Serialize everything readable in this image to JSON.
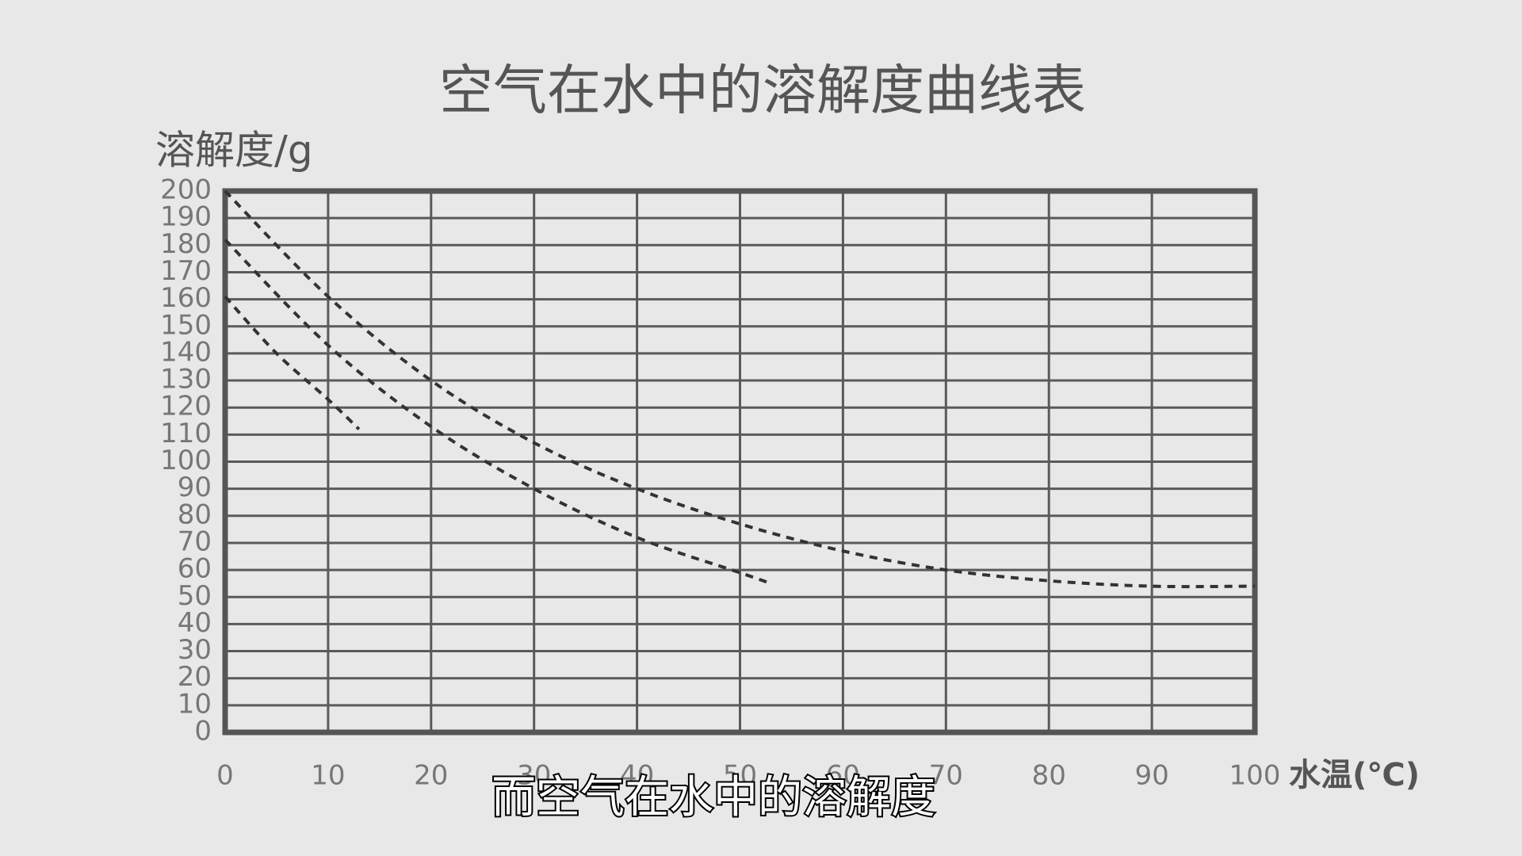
{
  "chart_data": {
    "type": "line",
    "title": "空气在水中的溶解度曲线表",
    "y_label": "溶解度/g",
    "x_label": "水温(℃)",
    "caption": "而空气在水中的溶解度",
    "series": [
      {
        "color": "#333333",
        "x": [
          0,
          10,
          20,
          30,
          40,
          50,
          60,
          70,
          80,
          90,
          100
        ],
        "values": [
          200,
          161,
          130,
          107,
          90,
          77,
          67,
          60,
          56,
          54,
          54
        ]
      },
      {
        "color": "#333333",
        "x": [
          0,
          10,
          20,
          30,
          40,
          50,
          53
        ],
        "values": [
          182,
          143,
          113,
          90,
          72,
          59,
          55
        ]
      },
      {
        "color": "#333333",
        "x": [
          0,
          5,
          10,
          13
        ],
        "values": [
          161,
          140,
          123,
          112
        ]
      }
    ],
    "xlim": [
      0,
      100
    ],
    "xticks": [
      0,
      10,
      20,
      30,
      40,
      50,
      60,
      70,
      80,
      90,
      100
    ],
    "ylim": [
      0,
      200
    ],
    "yticks": [
      0,
      10,
      20,
      30,
      40,
      50,
      60,
      70,
      80,
      90,
      100,
      110,
      120,
      130,
      140,
      150,
      160,
      170,
      180,
      190,
      200
    ],
    "grid": true,
    "dashed": true
  }
}
